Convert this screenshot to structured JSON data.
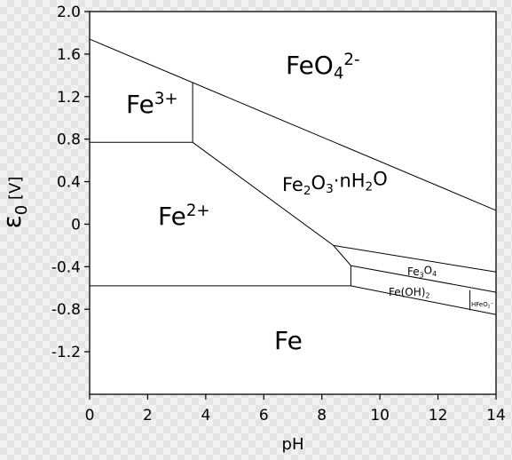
{
  "chart_data": {
    "type": "diagram",
    "xlabel": "pH",
    "ylabel_symbol": "ε",
    "ylabel_subscript": "0",
    "ylabel_unit": "[V]",
    "xlim": [
      0,
      14
    ],
    "ylim": [
      -1.6,
      2.0
    ],
    "x_ticks": [
      0,
      2,
      4,
      6,
      8,
      10,
      12,
      14
    ],
    "x_tick_labels": [
      "0",
      "2",
      "4",
      "6",
      "8",
      "10",
      "12",
      "14"
    ],
    "y_ticks": [
      2.0,
      1.6,
      1.2,
      0.8,
      0.4,
      0,
      -0.4,
      -0.8,
      -1.2
    ],
    "y_tick_labels": [
      "2.0",
      "1.6",
      "1.2",
      "0.8",
      "0.4",
      "0",
      "-0.4",
      "-0.8",
      "-1.2"
    ],
    "boundaries": [
      {
        "name": "fe3-feo4-upper",
        "points": [
          [
            0,
            1.74
          ],
          [
            14,
            0.13
          ]
        ]
      },
      {
        "name": "fe3-fe2",
        "points": [
          [
            0,
            0.77
          ],
          [
            3.55,
            0.77
          ]
        ]
      },
      {
        "name": "fe3-oxide",
        "points": [
          [
            3.55,
            1.33
          ],
          [
            3.55,
            0.77
          ]
        ]
      },
      {
        "name": "fe2-oxide",
        "points": [
          [
            3.55,
            0.77
          ],
          [
            8.4,
            -0.2
          ],
          [
            9.0,
            -0.39
          ]
        ]
      },
      {
        "name": "oxide-magnetite",
        "points": [
          [
            8.4,
            -0.2
          ],
          [
            14,
            -0.45
          ]
        ]
      },
      {
        "name": "magnetite-hydroxide",
        "points": [
          [
            9.0,
            -0.39
          ],
          [
            14,
            -0.64
          ]
        ]
      },
      {
        "name": "fe2-hydroxide",
        "points": [
          [
            9.0,
            -0.39
          ],
          [
            9.0,
            -0.58
          ]
        ]
      },
      {
        "name": "fe-fe2",
        "points": [
          [
            0,
            -0.58
          ],
          [
            9.0,
            -0.58
          ]
        ]
      },
      {
        "name": "fe-hydroxide",
        "points": [
          [
            9.0,
            -0.58
          ],
          [
            14,
            -0.85
          ]
        ]
      },
      {
        "name": "hydroxide-hfeo2",
        "points": [
          [
            13.1,
            -0.62
          ],
          [
            13.1,
            -0.81
          ]
        ]
      }
    ],
    "regions": [
      {
        "id": "fe3",
        "parts": [
          {
            "t": "Fe"
          },
          {
            "t": "3+",
            "sup": true
          }
        ],
        "size": "big"
      },
      {
        "id": "fe2",
        "parts": [
          {
            "t": "Fe"
          },
          {
            "t": "2+",
            "sup": true
          }
        ],
        "size": "big"
      },
      {
        "id": "feo4",
        "parts": [
          {
            "t": "FeO"
          },
          {
            "t": "4",
            "sub": true
          },
          {
            "t": "2-",
            "sup": true
          }
        ],
        "size": "big"
      },
      {
        "id": "fe2o3",
        "parts": [
          {
            "t": "Fe"
          },
          {
            "t": "2",
            "sub": true
          },
          {
            "t": "O"
          },
          {
            "t": "3",
            "sub": true
          },
          {
            "t": "·nH"
          },
          {
            "t": "2",
            "sub": true
          },
          {
            "t": "O"
          }
        ],
        "size": "mid"
      },
      {
        "id": "fe3o4",
        "parts": [
          {
            "t": "Fe"
          },
          {
            "t": "3",
            "sub": true
          },
          {
            "t": "O"
          },
          {
            "t": "4",
            "sub": true
          }
        ],
        "size": "small"
      },
      {
        "id": "feoh2",
        "parts": [
          {
            "t": "Fe(OH)"
          },
          {
            "t": "2",
            "sub": true
          }
        ],
        "size": "small"
      },
      {
        "id": "hfeo2",
        "parts": [
          {
            "t": "HFeO"
          },
          {
            "t": "2",
            "sub": true
          },
          {
            "t": "−",
            "sup": true
          }
        ],
        "size": "tiny"
      },
      {
        "id": "fe",
        "parts": [
          {
            "t": "Fe"
          }
        ],
        "size": "big"
      }
    ]
  }
}
